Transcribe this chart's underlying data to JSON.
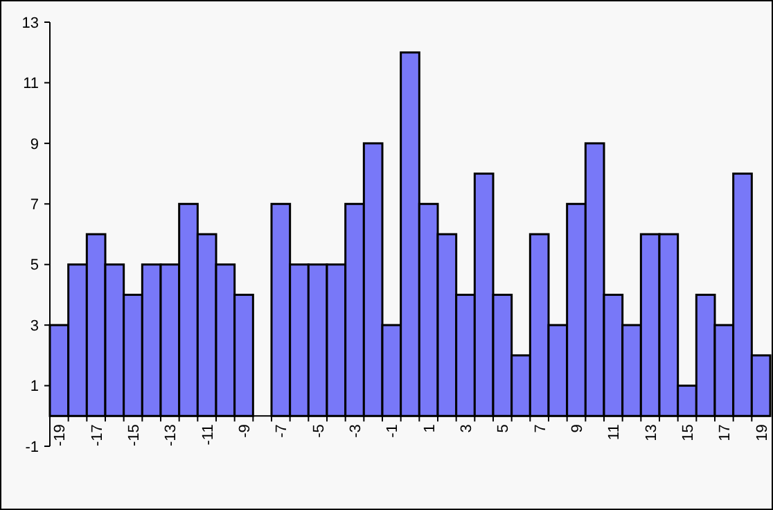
{
  "chart_data": {
    "type": "bar",
    "categories": [
      "-19",
      null,
      "-17",
      null,
      "-15",
      null,
      "-13",
      null,
      "-11",
      null,
      "-9",
      null,
      "-7",
      null,
      "-5",
      null,
      "-3",
      null,
      "-1",
      null,
      "1",
      null,
      "3",
      null,
      "5",
      null,
      "7",
      null,
      "9",
      null,
      "11",
      null,
      "13",
      null,
      "15",
      null,
      "17",
      null,
      "19"
    ],
    "values": [
      3,
      5,
      6,
      5,
      4,
      5,
      5,
      7,
      6,
      5,
      4,
      0,
      7,
      5,
      5,
      5,
      7,
      9,
      3,
      12,
      7,
      6,
      4,
      8,
      4,
      2,
      6,
      3,
      7,
      9,
      4,
      3,
      6,
      6,
      1,
      4,
      3,
      8,
      2
    ],
    "color": "#7878f8",
    "ylim": [
      -1,
      13
    ],
    "yticks": [
      -1,
      1,
      3,
      5,
      7,
      9,
      11,
      13
    ],
    "grid": false
  }
}
